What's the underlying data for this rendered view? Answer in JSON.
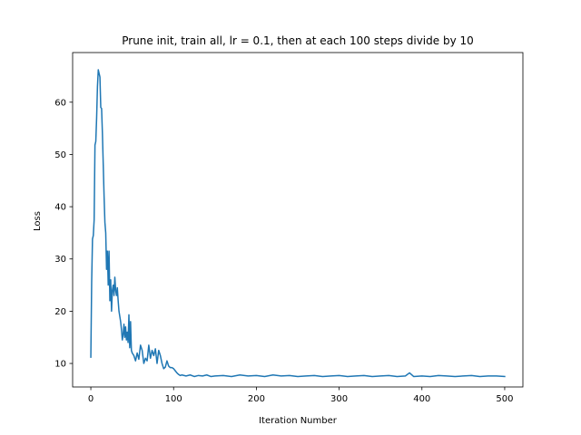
{
  "chart_data": {
    "type": "line",
    "title": "Prune init, train all, lr = 0.1, then at each 100 steps divide by 10",
    "xlabel": "Iteration Number",
    "ylabel": "Loss",
    "xlim": [
      -22,
      522
    ],
    "ylim": [
      5.5,
      69.5
    ],
    "xticks": [
      0,
      100,
      200,
      300,
      400,
      500
    ],
    "yticks": [
      10,
      20,
      30,
      40,
      50,
      60
    ],
    "grid": false,
    "legend": "none",
    "series": [
      {
        "color": "#1f77b4",
        "x": [
          0,
          1,
          2,
          3,
          4,
          5,
          6,
          7,
          8,
          9,
          10,
          11,
          12,
          13,
          14,
          15,
          16,
          17,
          18,
          19,
          20,
          21,
          22,
          23,
          24,
          25,
          26,
          27,
          28,
          29,
          30,
          31,
          32,
          33,
          34,
          35,
          36,
          37,
          38,
          39,
          40,
          41,
          42,
          43,
          44,
          45,
          46,
          47,
          48,
          49,
          50,
          52,
          54,
          56,
          58,
          60,
          62,
          64,
          66,
          68,
          70,
          72,
          74,
          76,
          78,
          80,
          82,
          84,
          86,
          88,
          90,
          92,
          94,
          96,
          98,
          100,
          102,
          104,
          106,
          108,
          110,
          115,
          120,
          125,
          130,
          135,
          140,
          145,
          150,
          160,
          170,
          180,
          190,
          200,
          210,
          220,
          230,
          240,
          250,
          260,
          270,
          280,
          290,
          300,
          310,
          320,
          330,
          340,
          350,
          360,
          370,
          380,
          385,
          390,
          400,
          410,
          420,
          430,
          440,
          450,
          460,
          470,
          480,
          490,
          500
        ],
        "y": [
          11.2,
          25.5,
          33.8,
          34.5,
          37.5,
          51.8,
          52.5,
          57,
          63,
          66.2,
          65.5,
          64.8,
          59,
          58.8,
          54,
          48,
          42,
          37,
          35,
          28,
          31.5,
          25,
          31.5,
          22,
          26,
          20,
          24,
          25,
          23,
          26.5,
          24,
          23,
          24.5,
          22,
          20,
          19,
          18,
          16.5,
          14.5,
          15.5,
          17.5,
          15,
          17,
          14.5,
          16,
          14,
          19.3,
          13,
          18,
          12.5,
          12,
          11.5,
          10.5,
          12,
          10.8,
          13.5,
          12.5,
          10,
          11,
          10.5,
          13.5,
          11,
          12.5,
          11.5,
          12.8,
          10,
          12.5,
          11.5,
          10,
          9,
          9.3,
          10.5,
          9.5,
          9.2,
          9.2,
          9,
          8.6,
          8.2,
          7.9,
          7.7,
          7.8,
          7.6,
          7.8,
          7.5,
          7.7,
          7.6,
          7.8,
          7.5,
          7.6,
          7.7,
          7.5,
          7.8,
          7.6,
          7.7,
          7.5,
          7.8,
          7.6,
          7.7,
          7.5,
          7.6,
          7.7,
          7.5,
          7.6,
          7.7,
          7.5,
          7.6,
          7.7,
          7.5,
          7.6,
          7.7,
          7.5,
          7.6,
          8.2,
          7.5,
          7.6,
          7.5,
          7.7,
          7.6,
          7.5,
          7.6,
          7.7,
          7.5,
          7.6,
          7.6,
          7.5
        ]
      }
    ]
  }
}
